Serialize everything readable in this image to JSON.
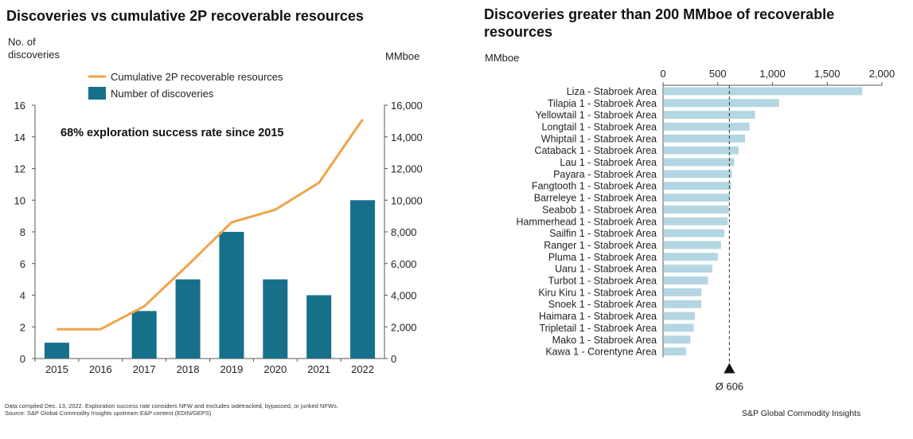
{
  "chart_data": [
    {
      "type": "bar+line",
      "title": "Discoveries vs cumulative 2P recoverable resources",
      "ylabel_left": "No. of discoveries",
      "ylabel_right": "MMboe",
      "annotation": "68% exploration success rate since 2015",
      "categories": [
        "2015",
        "2016",
        "2017",
        "2018",
        "2019",
        "2020",
        "2021",
        "2022"
      ],
      "ylim_left": [
        0,
        16
      ],
      "yticks_left": [
        "0",
        "2",
        "4",
        "6",
        "8",
        "10",
        "12",
        "14",
        "16"
      ],
      "ylim_right": [
        0,
        16000
      ],
      "yticks_right": [
        "0",
        "2,000",
        "4,000",
        "6,000",
        "8,000",
        "10,000",
        "12,000",
        "14,000",
        "16,000"
      ],
      "legend_position": "top-left",
      "series": [
        {
          "name": "Cumulative 2P recoverable resources",
          "kind": "line",
          "axis": "right",
          "color": "#f0a34a",
          "values": [
            1850,
            1850,
            3300,
            5900,
            8600,
            9400,
            11100,
            15100
          ]
        },
        {
          "name": "Number of discoveries",
          "kind": "bar",
          "axis": "left",
          "color": "#17708a",
          "values": [
            1,
            0,
            3,
            5,
            8,
            5,
            4,
            10
          ]
        }
      ]
    },
    {
      "type": "bar",
      "orientation": "horizontal",
      "title": "Discoveries greater than 200 MMboe of recoverable resources",
      "xlabel": "MMboe",
      "xlim": [
        0,
        2000
      ],
      "xticks": [
        "0",
        "500",
        "1,000",
        "1,500",
        "2,000"
      ],
      "bar_color": "#b3d6e2",
      "categories": [
        "Liza - Stabroek Area",
        "Tilapia 1 - Stabroek Area",
        "Yellowtail 1 - Stabroek Area",
        "Longtail 1 - Stabroek Area",
        "Whiptail 1 - Stabroek Area",
        "Cataback 1 - Stabroek Area",
        "Lau 1 - Stabroek Area",
        "Payara - Stabroek Area",
        "Fangtooth 1 - Stabroek Area",
        "Barreleye 1 - Stabroek Area",
        "Seabob 1 - Stabroek Area",
        "Hammerhead 1 - Stabroek Area",
        "Sailfin 1 - Stabroek Area",
        "Ranger 1 - Stabroek Area",
        "Pluma 1 - Stabroek Area",
        "Uaru 1 - Stabroek Area",
        "Turbot 1 - Stabroek Area",
        "Kiru Kiru 1 - Stabroek Area",
        "Snoek 1 - Stabroek Area",
        "Haimara 1 - Stabroek Area",
        "Tripletail 1 - Stabroek Area",
        "Mako 1 - Stabroek Area",
        "Kawa 1 - Corentyne Area"
      ],
      "values": [
        1820,
        1060,
        840,
        790,
        750,
        690,
        650,
        630,
        620,
        610,
        600,
        590,
        560,
        530,
        500,
        450,
        410,
        350,
        350,
        290,
        280,
        250,
        210
      ],
      "average": {
        "value": 606,
        "label": "Ø 606"
      }
    }
  ],
  "footnote": {
    "line1": "Data compiled Dec. 13, 2022. Exploration success rate considers NFW and excludes sidetracked, bypassed, or junked NFWs.",
    "line2": "Source: S&P Global Commodity Insights upstream E&P content (EDIN/GEPS)"
  },
  "credit": "S&P Global Commodity Insights"
}
